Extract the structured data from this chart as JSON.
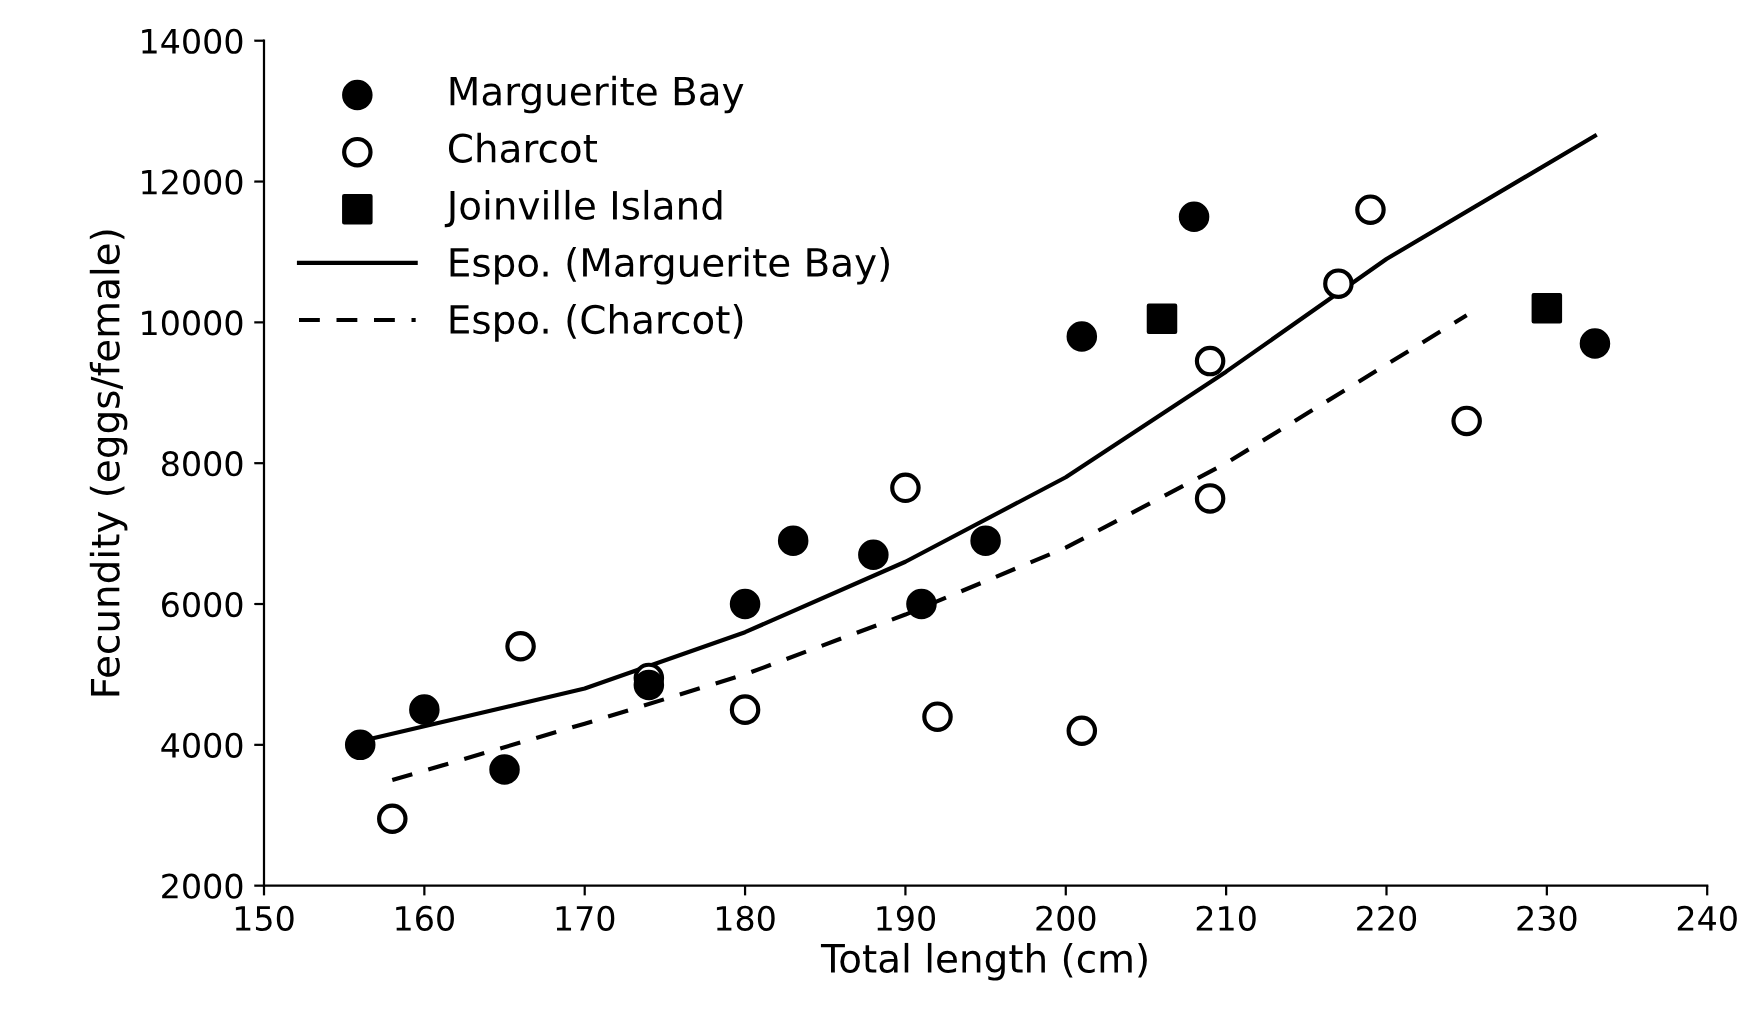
{
  "chart_data": {
    "type": "scatter",
    "xlabel": "Total length (cm)",
    "ylabel": "Fecundity (eggs/female)",
    "xlim": [
      150,
      240
    ],
    "xticks": [
      150,
      160,
      170,
      180,
      190,
      200,
      210,
      220,
      230,
      240
    ],
    "ylim": [
      2000,
      14000
    ],
    "yticks": [
      2000,
      4000,
      6000,
      8000,
      10000,
      12000,
      14000
    ],
    "grid": false,
    "legend": "top left",
    "series": [
      {
        "name": "Marguerite Bay",
        "marker": "circle",
        "color": "#000000",
        "x": [
          156,
          160,
          165,
          174,
          180,
          183,
          188,
          191,
          195,
          201,
          208,
          233
        ],
        "values": [
          4000,
          4500,
          3650,
          4850,
          6000,
          6900,
          6700,
          6000,
          6900,
          9800,
          11500,
          9700
        ]
      },
      {
        "name": "Charcot",
        "marker": "circle",
        "color": "#ffffff",
        "x": [
          158,
          166,
          174,
          180,
          190,
          192,
          201,
          209,
          209,
          217,
          219,
          225
        ],
        "values": [
          2950,
          5400,
          4950,
          4500,
          7650,
          4400,
          4200,
          9450,
          7500,
          10550,
          11600,
          8600
        ]
      },
      {
        "name": "Joinville Island",
        "marker": "square",
        "color": "#000000",
        "x": [
          206,
          230
        ],
        "values": [
          10050,
          10200
        ]
      },
      {
        "name": "Espo. (Marguerite Bay)",
        "type": "line",
        "line_style": "solid",
        "color": "#000000",
        "x": [
          156,
          170,
          180,
          190,
          200,
          210,
          220,
          233
        ],
        "values": [
          4050,
          4800,
          5600,
          6600,
          7800,
          9300,
          10900,
          12650
        ]
      },
      {
        "name": "Espo. (Charcot)",
        "type": "line",
        "line_style": "dashed",
        "color": "#000000",
        "x": [
          158,
          170,
          180,
          190,
          200,
          210,
          225
        ],
        "values": [
          3500,
          4300,
          5000,
          5850,
          6800,
          8000,
          10100
        ]
      }
    ]
  }
}
